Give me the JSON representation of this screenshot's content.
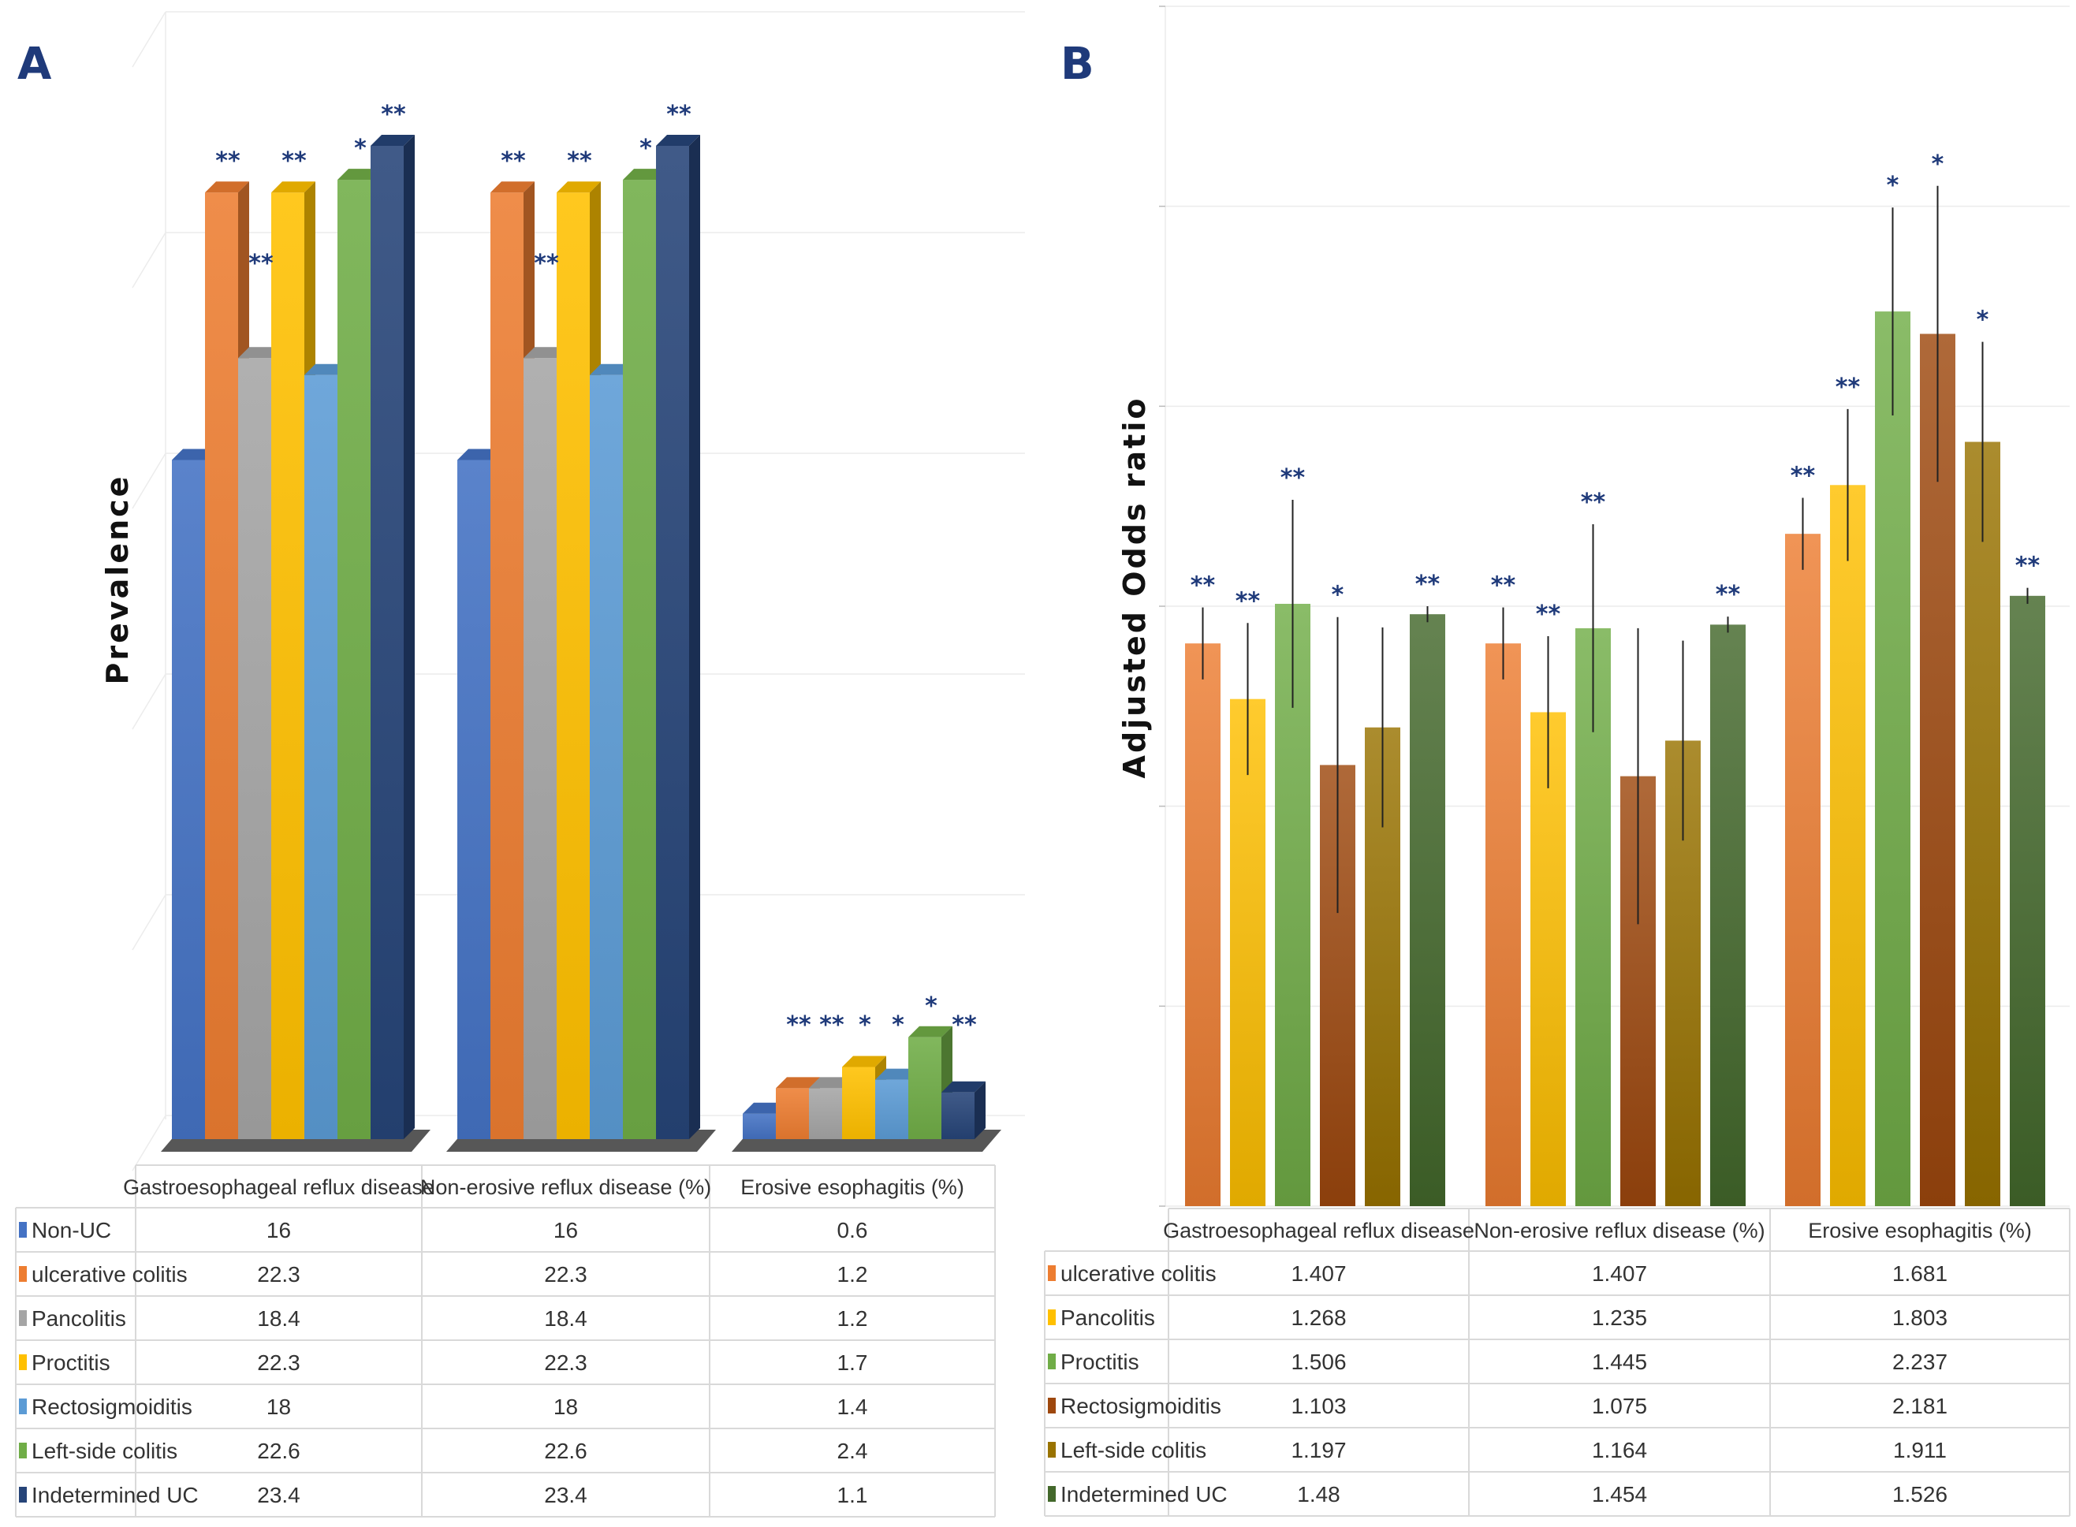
{
  "chart_data": [
    {
      "panel": "A",
      "type": "bar",
      "style": "3d-column-with-data-table",
      "ylabel": "Prevalence",
      "ylim": [
        0,
        26
      ],
      "categories": [
        "Gastroesophageal reflux disease",
        "Non-erosive reflux disease (%)",
        "Erosive esophagitis (%)"
      ],
      "series": [
        {
          "name": "Non-UC",
          "color": "#4472C4",
          "values": [
            16,
            16,
            0.6
          ],
          "stars": [
            "",
            "",
            ""
          ]
        },
        {
          "name": "ulcerative colitis",
          "color": "#ED7D31",
          "values": [
            22.3,
            22.3,
            1.2
          ],
          "stars": [
            "**",
            "**",
            "**"
          ]
        },
        {
          "name": "Pancolitis",
          "color": "#A5A5A5",
          "values": [
            18.4,
            18.4,
            1.2
          ],
          "stars": [
            "**",
            "**",
            "**"
          ]
        },
        {
          "name": "Proctitis",
          "color": "#FFC000",
          "values": [
            22.3,
            22.3,
            1.7
          ],
          "stars": [
            "**",
            "**",
            "*"
          ]
        },
        {
          "name": "Rectosigmoiditis",
          "color": "#5B9BD5",
          "values": [
            18,
            18,
            1.4
          ],
          "stars": [
            "",
            "",
            "*"
          ]
        },
        {
          "name": "Left-side colitis",
          "color": "#70AD47",
          "values": [
            22.6,
            22.6,
            2.4
          ],
          "stars": [
            "*",
            "*",
            "*"
          ]
        },
        {
          "name": "Indetermined UC",
          "color": "#264478",
          "values": [
            23.4,
            23.4,
            1.1
          ],
          "stars": [
            "**",
            "**",
            "**"
          ]
        }
      ]
    },
    {
      "panel": "B",
      "type": "bar",
      "style": "gradient-column-with-error-bars-and-data-table",
      "ylabel": "Adjusted Odds ratio",
      "ylim": [
        0,
        3
      ],
      "categories": [
        "Gastroesophageal reflux disease",
        "Non-erosive reflux disease (%)",
        "Erosive esophagitis (%)"
      ],
      "series": [
        {
          "name": "ulcerative colitis",
          "color": "#ED7D31",
          "values": [
            1.407,
            1.407,
            1.681
          ],
          "err": [
            0.09,
            0.09,
            0.09
          ],
          "stars": [
            "**",
            "**",
            "**"
          ]
        },
        {
          "name": "Pancolitis",
          "color": "#FFC000",
          "values": [
            1.268,
            1.235,
            1.803
          ],
          "err": [
            0.19,
            0.19,
            0.19
          ],
          "stars": [
            "**",
            "**",
            "**"
          ]
        },
        {
          "name": "Proctitis",
          "color": "#70AD47",
          "values": [
            1.506,
            1.445,
            2.237
          ],
          "err": [
            0.26,
            0.26,
            0.26
          ],
          "stars": [
            "**",
            "**",
            "*"
          ]
        },
        {
          "name": "Rectosigmoiditis",
          "color": "#9E480E",
          "values": [
            1.103,
            1.075,
            2.181
          ],
          "err": [
            0.37,
            0.37,
            0.37
          ],
          "stars": [
            "*",
            "",
            "*"
          ]
        },
        {
          "name": "Left-side colitis",
          "color": "#997300",
          "values": [
            1.197,
            1.164,
            1.911
          ],
          "err": [
            0.25,
            0.25,
            0.25
          ],
          "stars": [
            "",
            "",
            "*"
          ]
        },
        {
          "name": "Indetermined UC",
          "color": "#43682B",
          "values": [
            1.48,
            1.454,
            1.526
          ],
          "err": [
            0.02,
            0.02,
            0.02
          ],
          "stars": [
            "**",
            "**",
            "**"
          ]
        }
      ]
    }
  ]
}
